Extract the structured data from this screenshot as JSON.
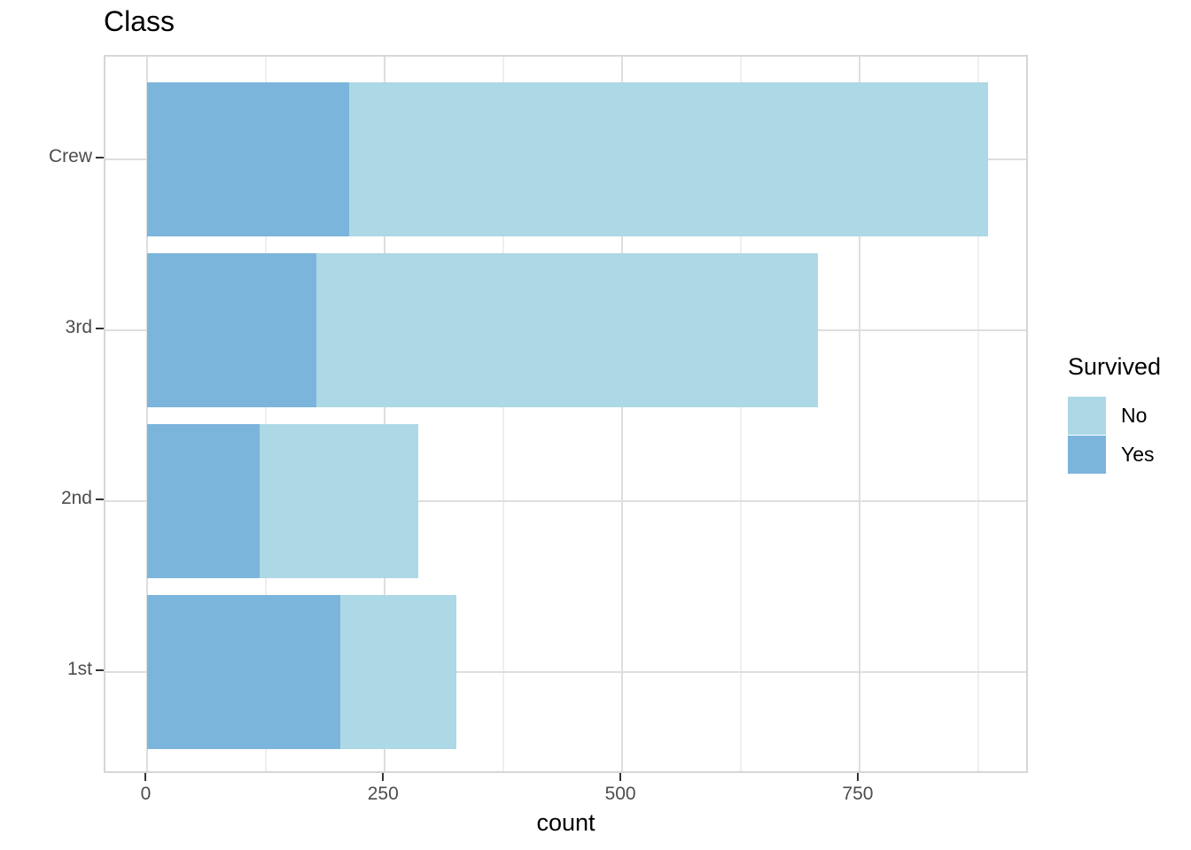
{
  "chart_data": {
    "type": "bar",
    "orientation": "horizontal",
    "stacked": true,
    "title": "Class",
    "xlabel": "count",
    "ylabel": "",
    "categories": [
      "Crew",
      "3rd",
      "2nd",
      "1st"
    ],
    "series": [
      {
        "name": "No",
        "color": "#ADD8E5",
        "values": [
          673,
          528,
          167,
          122
        ]
      },
      {
        "name": "Yes",
        "color": "#7CB5DB",
        "values": [
          212,
          178,
          118,
          203
        ]
      }
    ],
    "stack_order": [
      "Yes",
      "No"
    ],
    "totals": [
      885,
      706,
      285,
      325
    ],
    "x_ticks": [
      0,
      250,
      500,
      750
    ],
    "x_minor_ticks": [
      125,
      375,
      625,
      875
    ],
    "xlim": [
      -44.25,
      929.25
    ],
    "bar_fraction": 0.9,
    "grid": true,
    "legend": {
      "title": "Survived",
      "position": "right"
    },
    "palette": {
      "major_grid": "#DEDEDE",
      "minor_grid": "#EFEFEF",
      "panel_border": "#D6D6D6",
      "panel_background": "#FFFFFF",
      "tick_mark": "#333333",
      "axis_text": "#4D4D4D",
      "title_text": "#000000"
    }
  }
}
